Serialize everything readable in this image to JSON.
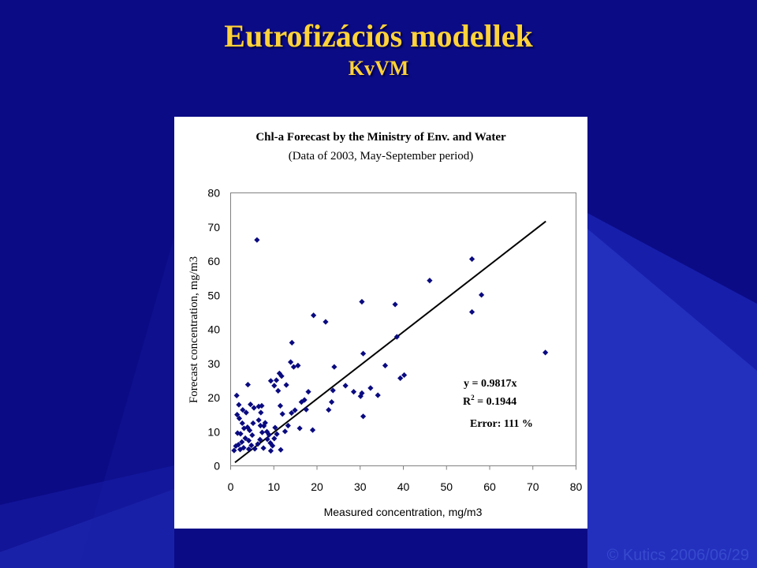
{
  "slide": {
    "title": "Eutrofizációs modellek",
    "subtitle": "KvVM",
    "footer": "© Kutics 2006/06/29"
  },
  "colors": {
    "background": "#0b0b86",
    "title": "#ffd23a",
    "points": "#0a0a80",
    "line": "#000000"
  },
  "chart_data": {
    "type": "scatter",
    "title": "Chl-a Forecast by the Ministry of Env. and Water",
    "subtitle": "(Data of 2003, May-September period)",
    "xlabel": "Measured concentration, mg/m3",
    "ylabel": "Forecast concentration, mg/m3",
    "xlim": [
      0,
      80
    ],
    "ylim": [
      0,
      80
    ],
    "xticks": [
      0,
      10,
      20,
      30,
      40,
      50,
      60,
      70,
      80
    ],
    "yticks": [
      0,
      10,
      20,
      30,
      40,
      50,
      60,
      70,
      80
    ],
    "grid": false,
    "legend": "none",
    "annotations": [
      "y = 0.9817x",
      "R",
      "2",
      " = 0.1944",
      "Error: 111 %"
    ],
    "trendline": {
      "slope": 0.9817,
      "x": [
        1,
        73
      ]
    },
    "points": [
      [
        6.1,
        66.2
      ],
      [
        1.4,
        20.6
      ],
      [
        1.9,
        17.9
      ],
      [
        4.0,
        23.8
      ],
      [
        1.5,
        15.0
      ],
      [
        2.8,
        16.4
      ],
      [
        3.6,
        15.6
      ],
      [
        4.6,
        18.0
      ],
      [
        5.4,
        17.0
      ],
      [
        6.5,
        17.4
      ],
      [
        7.2,
        17.6
      ],
      [
        7.0,
        15.6
      ],
      [
        6.5,
        13.4
      ],
      [
        8.0,
        12.6
      ],
      [
        9.3,
        24.9
      ],
      [
        10.1,
        23.5
      ],
      [
        10.6,
        25.1
      ],
      [
        11.3,
        27.1
      ],
      [
        11.0,
        22.0
      ],
      [
        11.8,
        26.3
      ],
      [
        12.9,
        23.7
      ],
      [
        13.9,
        30.4
      ],
      [
        14.6,
        29.0
      ],
      [
        15.6,
        29.4
      ],
      [
        14.2,
        36.1
      ],
      [
        11.5,
        17.6
      ],
      [
        12.0,
        15.2
      ],
      [
        14.9,
        16.3
      ],
      [
        14.1,
        15.5
      ],
      [
        16.4,
        18.7
      ],
      [
        18.0,
        21.7
      ],
      [
        17.5,
        16.5
      ],
      [
        17.1,
        19.3
      ],
      [
        19.2,
        44.1
      ],
      [
        16.0,
        11.0
      ],
      [
        19.0,
        10.5
      ],
      [
        22.0,
        42.2
      ],
      [
        24.0,
        29.0
      ],
      [
        23.7,
        22.1
      ],
      [
        23.4,
        18.7
      ],
      [
        22.7,
        16.4
      ],
      [
        26.6,
        23.5
      ],
      [
        28.5,
        21.7
      ],
      [
        30.1,
        20.4
      ],
      [
        30.4,
        21.3
      ],
      [
        30.4,
        48.1
      ],
      [
        30.7,
        32.9
      ],
      [
        30.7,
        14.5
      ],
      [
        32.4,
        22.8
      ],
      [
        34.1,
        20.7
      ],
      [
        35.8,
        29.4
      ],
      [
        38.1,
        47.3
      ],
      [
        38.5,
        37.8
      ],
      [
        39.3,
        25.7
      ],
      [
        40.2,
        26.6
      ],
      [
        46.1,
        54.3
      ],
      [
        55.9,
        60.6
      ],
      [
        55.9,
        45.1
      ],
      [
        58.1,
        50.1
      ],
      [
        72.9,
        33.2
      ],
      [
        0.8,
        4.5
      ],
      [
        1.2,
        5.8
      ],
      [
        1.8,
        6.2
      ],
      [
        2.2,
        4.8
      ],
      [
        2.6,
        7.0
      ],
      [
        3.0,
        5.3
      ],
      [
        3.4,
        8.1
      ],
      [
        1.6,
        9.6
      ],
      [
        2.3,
        9.4
      ],
      [
        3.1,
        11.0
      ],
      [
        2.7,
        12.5
      ],
      [
        3.9,
        11.3
      ],
      [
        4.4,
        10.4
      ],
      [
        5.0,
        9.0
      ],
      [
        4.2,
        7.4
      ],
      [
        4.8,
        6.0
      ],
      [
        5.6,
        5.0
      ],
      [
        6.3,
        6.4
      ],
      [
        6.8,
        7.7
      ],
      [
        7.3,
        9.8
      ],
      [
        7.7,
        11.7
      ],
      [
        6.9,
        11.8
      ],
      [
        8.4,
        10.0
      ],
      [
        8.9,
        9.1
      ],
      [
        8.5,
        7.8
      ],
      [
        9.2,
        6.7
      ],
      [
        9.7,
        5.9
      ],
      [
        10.1,
        8.0
      ],
      [
        10.7,
        9.3
      ],
      [
        9.3,
        4.4
      ],
      [
        11.6,
        4.7
      ],
      [
        12.6,
        10.1
      ],
      [
        13.3,
        11.8
      ],
      [
        4.2,
        4.9
      ],
      [
        7.6,
        5.2
      ],
      [
        2.0,
        13.9
      ],
      [
        5.2,
        12.5
      ],
      [
        10.3,
        11.2
      ]
    ]
  }
}
